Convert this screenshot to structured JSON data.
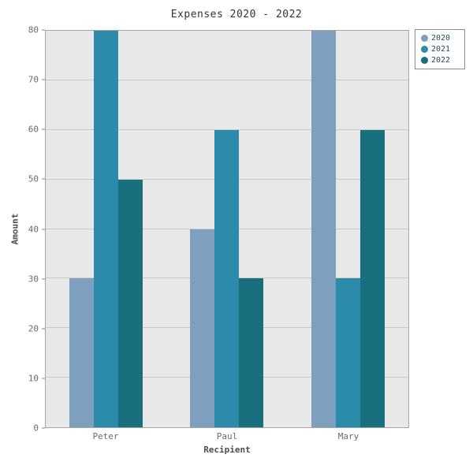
{
  "title": "Expenses 2020 - 2022",
  "chart_data": {
    "type": "bar",
    "title": "Expenses 2020 - 2022",
    "xlabel": "Recipient",
    "ylabel": "Amount",
    "categories": [
      "Peter",
      "Paul",
      "Mary"
    ],
    "series": [
      {
        "name": "2020",
        "color": "#7f9fbf",
        "values": [
          30,
          40,
          80
        ]
      },
      {
        "name": "2021",
        "color": "#2c8aaa",
        "values": [
          80,
          60,
          30
        ]
      },
      {
        "name": "2022",
        "color": "#186f7d",
        "values": [
          50,
          30,
          60
        ]
      }
    ],
    "ylim": [
      0,
      80
    ],
    "ytick_interval": 10,
    "yticks": [
      0,
      10,
      20,
      30,
      40,
      50,
      60,
      70,
      80
    ],
    "grid": true,
    "legend_position": "top-right",
    "colors": {
      "plot_background": "#e8e8e8",
      "gridline": "#c9c9c9",
      "plot_border": "#a6a6a6",
      "tick_text": "#6b6b6b",
      "axis_title_text": "#4d4d4d",
      "title_text": "#333333",
      "legend_text": "#234a5e",
      "legend_border": "#8c8c8c"
    }
  }
}
